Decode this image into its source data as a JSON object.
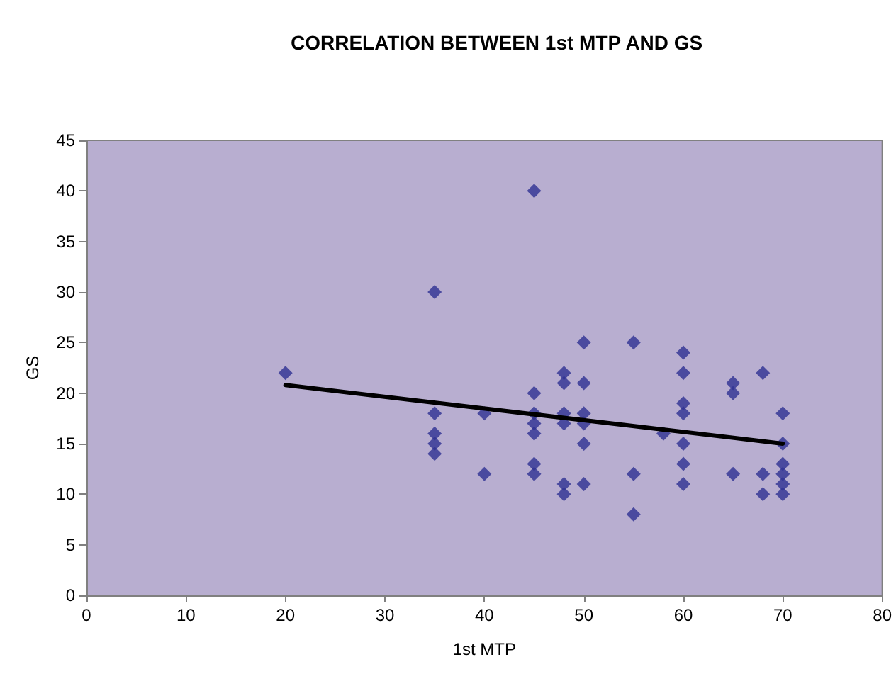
{
  "chart_data": {
    "type": "scatter",
    "title": "CORRELATION BETWEEN 1st MTP AND GS",
    "xlabel": "1st MTP",
    "ylabel": "GS",
    "marker": "diamond",
    "grid": false,
    "xlim": [
      0,
      80
    ],
    "xticks": [
      0,
      10,
      20,
      30,
      40,
      50,
      60,
      70,
      80
    ],
    "ylim": [
      0,
      45
    ],
    "yticks": [
      0,
      5,
      10,
      15,
      20,
      25,
      30,
      35,
      40,
      45
    ],
    "series": [
      {
        "color": "#2e3192",
        "x": [
          20,
          35,
          35,
          35,
          35,
          35,
          40,
          40,
          45,
          45,
          45,
          45,
          45,
          45,
          45,
          48,
          48,
          48,
          48,
          48,
          48,
          50,
          50,
          50,
          50,
          50,
          50,
          55,
          55,
          55,
          58,
          60,
          60,
          60,
          60,
          60,
          60,
          60,
          65,
          65,
          65,
          68,
          68,
          68,
          70,
          70,
          70,
          70,
          70,
          70
        ],
        "values": [
          22,
          30,
          18,
          16,
          15,
          14,
          18,
          12,
          40,
          20,
          18,
          17,
          16,
          13,
          12,
          22,
          21,
          18,
          17,
          11,
          10,
          25,
          21,
          18,
          17,
          15,
          11,
          25,
          12,
          8,
          16,
          24,
          22,
          19,
          18,
          15,
          13,
          11,
          21,
          20,
          12,
          22,
          12,
          10,
          18,
          15,
          13,
          12,
          11,
          10
        ]
      },
      {
        "type": "line",
        "color": "#000000",
        "marker": "none",
        "x": [
          20,
          70
        ],
        "values": [
          20.8,
          15
        ]
      }
    ]
  }
}
